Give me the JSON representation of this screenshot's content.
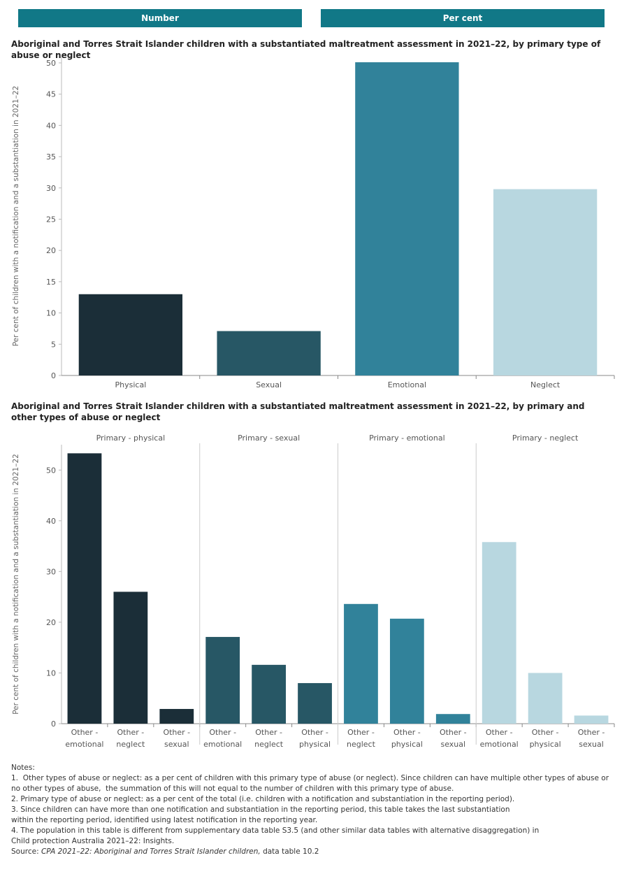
{
  "tabs": [
    {
      "label": "Number"
    },
    {
      "label": "Per cent"
    }
  ],
  "colors": {
    "tab": "#117887",
    "physical": "#1b2e38",
    "sexual": "#275765",
    "emotional": "#31829a",
    "neglect": "#b8d7e0"
  },
  "chart_data": [
    {
      "type": "bar",
      "title": "Aboriginal and Torres Strait Islander children with a substantiated maltreatment assessment in 2021–22, by primary type of abuse or neglect",
      "ylabel": "Per cent of children with a notification and a substantiation in 2021–22",
      "xlabel": "",
      "categories": [
        "Physical",
        "Sexual",
        "Emotional",
        "Neglect"
      ],
      "values": [
        13.0,
        7.1,
        50.1,
        29.8
      ],
      "colors": [
        "#1b2e38",
        "#275765",
        "#31829a",
        "#b8d7e0"
      ],
      "ylim": [
        0,
        51
      ],
      "yticks": [
        0,
        5,
        10,
        15,
        20,
        25,
        30,
        35,
        40,
        45,
        50
      ],
      "grid": false
    },
    {
      "type": "bar",
      "title": "Aboriginal and Torres Strait Islander children with a substantiated maltreatment assessment in 2021–22, by primary and other types of abuse or neglect",
      "ylabel": "Per cent of children with a notification and a substantiation in 2021–22",
      "xlabel": "",
      "ylim": [
        0,
        55
      ],
      "yticks": [
        0,
        10,
        20,
        30,
        40,
        50
      ],
      "grid": false,
      "panels": [
        {
          "name": "Primary - physical",
          "color": "#1b2e38",
          "categories": [
            [
              "Other -",
              "emotional"
            ],
            [
              "Other -",
              "neglect"
            ],
            [
              "Other -",
              "sexual"
            ]
          ],
          "values": [
            53.3,
            26.0,
            2.9
          ]
        },
        {
          "name": "Primary - sexual",
          "color": "#275765",
          "categories": [
            [
              "Other -",
              "emotional"
            ],
            [
              "Other -",
              "neglect"
            ],
            [
              "Other -",
              "physical"
            ]
          ],
          "values": [
            17.1,
            11.6,
            8.0
          ]
        },
        {
          "name": "Primary - emotional",
          "color": "#31829a",
          "categories": [
            [
              "Other -",
              "neglect"
            ],
            [
              "Other -",
              "physical"
            ],
            [
              "Other -",
              "sexual"
            ]
          ],
          "values": [
            23.6,
            20.7,
            1.9
          ]
        },
        {
          "name": "Primary - neglect",
          "color": "#b8d7e0",
          "categories": [
            [
              "Other -",
              "emotional"
            ],
            [
              "Other -",
              "physical"
            ],
            [
              "Other -",
              "sexual"
            ]
          ],
          "values": [
            35.8,
            10.0,
            1.6
          ]
        }
      ]
    }
  ],
  "notes": {
    "heading": "Notes:",
    "lines": [
      "1.  Other types of abuse or neglect: as a per cent of children with this primary type of abuse (or neglect). Since children can have multiple other types of abuse or no other types of abuse,  the summation of this will not equal to the number of children with this primary type of abuse.",
      "2. Primary type of abuse or neglect: as a per cent of the total (i.e. children with a notification and substantiation in the reporting period).",
      "3. Since children can have more than one notification and substantiation in the reporting period, this table takes the last substantiation\nwithin the reporting period, identified using latest notification in the reporting year.",
      "4. The population in this table is different from supplementary data table S3.5 (and other similar data tables with alternative disaggregation) in\nChild protection Australia 2021–22: Insights."
    ],
    "source_prefix": "Source: ",
    "source_italic": "CPA 2021–22: Aboriginal and Torres Strait Islander children,",
    "source_suffix": " data table 10.2"
  }
}
